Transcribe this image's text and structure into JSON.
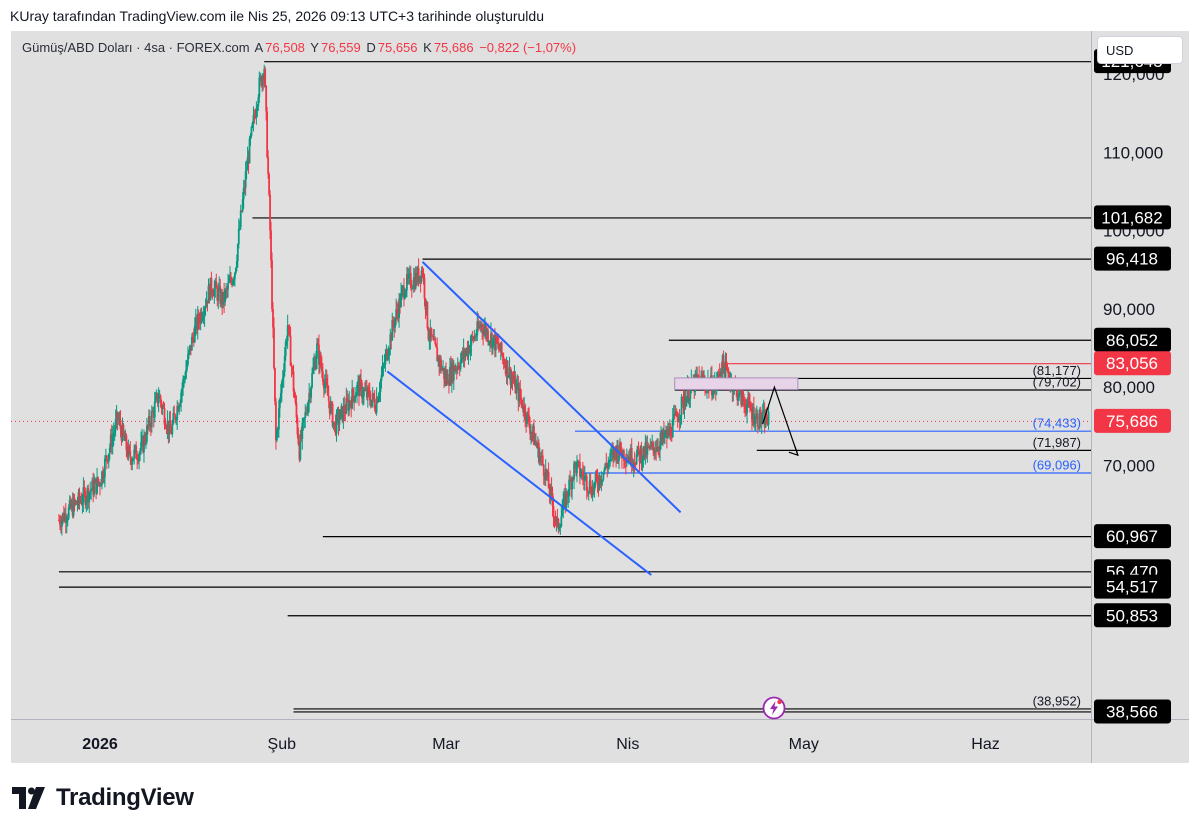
{
  "header": {
    "attribution": "KUray tarafından TradingView.com ile Nis 25, 2026 09:13 UTC+3 tarihinde oluşturuldu"
  },
  "symbol": {
    "name": "Gümüş/ABD Doları · 4sa · FOREX.com",
    "open_label": "A",
    "open": "76,508",
    "high_label": "Y",
    "high": "76,559",
    "low_label": "D",
    "low": "75,656",
    "close_label": "K",
    "close": "75,686",
    "change": "−0,822 (−1,07%)"
  },
  "currency_button": "USD",
  "footer": {
    "logo_text": "TradingView"
  },
  "icons": {
    "logo": "tradingview-logo-icon",
    "replay": "lightning-bolt-icon"
  },
  "colors": {
    "background": "#e0e0e0",
    "up": "#089981",
    "down": "#f23645",
    "channel": "#2962ff",
    "price_tag": "#f23645",
    "level_tag": "#000000"
  },
  "chart_data": {
    "type": "candlestick",
    "title": "Gümüş/ABD Doları · 4sa · FOREX.com",
    "xlabel": "",
    "ylabel": "",
    "x_ticks": [
      "2026",
      "Şub",
      "Mar",
      "Nis",
      "May",
      "Haz"
    ],
    "y_ticks": [
      "70,000",
      "80,000",
      "90,000",
      "100,000",
      "110,000",
      "120,000"
    ],
    "ylim": [
      37.6,
      125.5
    ],
    "grid": false,
    "current_price": {
      "value": 75.686,
      "label": "75,686"
    },
    "levels": [
      {
        "value": 121.645,
        "label": "121,645",
        "style": "tag-black"
      },
      {
        "value": 101.682,
        "label": "101,682",
        "style": "tag-black"
      },
      {
        "value": 96.418,
        "label": "96,418",
        "style": "tag-black"
      },
      {
        "value": 86.052,
        "label": "86,052",
        "style": "tag-black"
      },
      {
        "value": 83.056,
        "label": "83,056",
        "style": "tag-red"
      },
      {
        "value": 81.177,
        "label": "(81,177)",
        "style": "text-black"
      },
      {
        "value": 79.702,
        "label": "(79,702)",
        "style": "text-black"
      },
      {
        "value": 74.433,
        "label": "(74,433)",
        "style": "text-blue"
      },
      {
        "value": 71.987,
        "label": "(71,987)",
        "style": "text-black"
      },
      {
        "value": 69.096,
        "label": "(69,096)",
        "style": "text-blue"
      },
      {
        "value": 60.967,
        "label": "60,967",
        "style": "tag-black"
      },
      {
        "value": 56.47,
        "label": "56,470",
        "style": "tag-black"
      },
      {
        "value": 54.517,
        "label": "54,517",
        "style": "tag-black"
      },
      {
        "value": 50.853,
        "label": "50,853",
        "style": "tag-black"
      },
      {
        "value": 38.952,
        "label": "(38,952)",
        "style": "text-black"
      },
      {
        "value": 38.566,
        "label": "38,566",
        "style": "tag-black"
      }
    ],
    "price_path": [
      [
        "2025-12-25",
        63.0
      ],
      [
        "2026-01-01",
        68.0
      ],
      [
        "2026-01-04",
        76.0
      ],
      [
        "2026-01-06",
        71.0
      ],
      [
        "2026-01-08",
        72.0
      ],
      [
        "2026-01-11",
        79.0
      ],
      [
        "2026-01-13",
        74.0
      ],
      [
        "2026-01-15",
        80.0
      ],
      [
        "2026-01-17",
        87.0
      ],
      [
        "2026-01-20",
        93.0
      ],
      [
        "2026-01-22",
        91.0
      ],
      [
        "2026-01-24",
        95.0
      ],
      [
        "2026-01-26",
        108.0
      ],
      [
        "2026-01-28",
        118.0
      ],
      [
        "2026-01-29",
        121.0
      ],
      [
        "2026-01-30",
        100.0
      ],
      [
        "2026-01-31",
        73.0
      ],
      [
        "2026-02-02",
        88.0
      ],
      [
        "2026-02-04",
        72.0
      ],
      [
        "2026-02-07",
        85.0
      ],
      [
        "2026-02-10",
        75.0
      ],
      [
        "2026-02-14",
        80.0
      ],
      [
        "2026-02-17",
        78.0
      ],
      [
        "2026-02-20",
        88.0
      ],
      [
        "2026-02-22",
        93.0
      ],
      [
        "2026-02-24",
        94.0
      ],
      [
        "2026-02-25",
        95.0
      ],
      [
        "2026-02-26",
        87.0
      ],
      [
        "2026-03-01",
        81.0
      ],
      [
        "2026-03-04",
        84.0
      ],
      [
        "2026-03-07",
        88.0
      ],
      [
        "2026-03-10",
        85.0
      ],
      [
        "2026-03-14",
        78.0
      ],
      [
        "2026-03-18",
        69.0
      ],
      [
        "2026-03-20",
        62.0
      ],
      [
        "2026-03-23",
        70.0
      ],
      [
        "2026-03-26",
        67.0
      ],
      [
        "2026-03-30",
        72.0
      ],
      [
        "2026-04-02",
        71.0
      ],
      [
        "2026-04-05",
        72.0
      ],
      [
        "2026-04-08",
        74.0
      ],
      [
        "2026-04-11",
        79.0
      ],
      [
        "2026-04-13",
        81.0
      ],
      [
        "2026-04-16",
        80.0
      ],
      [
        "2026-04-17",
        83.0
      ],
      [
        "2026-04-20",
        79.0
      ],
      [
        "2026-04-23",
        76.0
      ],
      [
        "2026-04-25",
        75.686
      ]
    ],
    "annotations": [
      {
        "type": "channel-upper",
        "from": [
          "2026-02-25",
          96.0
        ],
        "to": [
          "2026-04-10",
          64.0
        ]
      },
      {
        "type": "channel-lower",
        "from": [
          "2026-02-19",
          82.0
        ],
        "to": [
          "2026-04-05",
          56.0
        ]
      },
      {
        "type": "zone",
        "from": [
          "2026-04-09",
          81.177
        ],
        "to": [
          "2026-04-30",
          79.702
        ]
      },
      {
        "type": "projection",
        "points": [
          [
            "2026-04-24",
            75.3
          ],
          [
            "2026-04-26",
            80.0
          ],
          [
            "2026-04-30",
            71.3
          ]
        ]
      }
    ]
  }
}
